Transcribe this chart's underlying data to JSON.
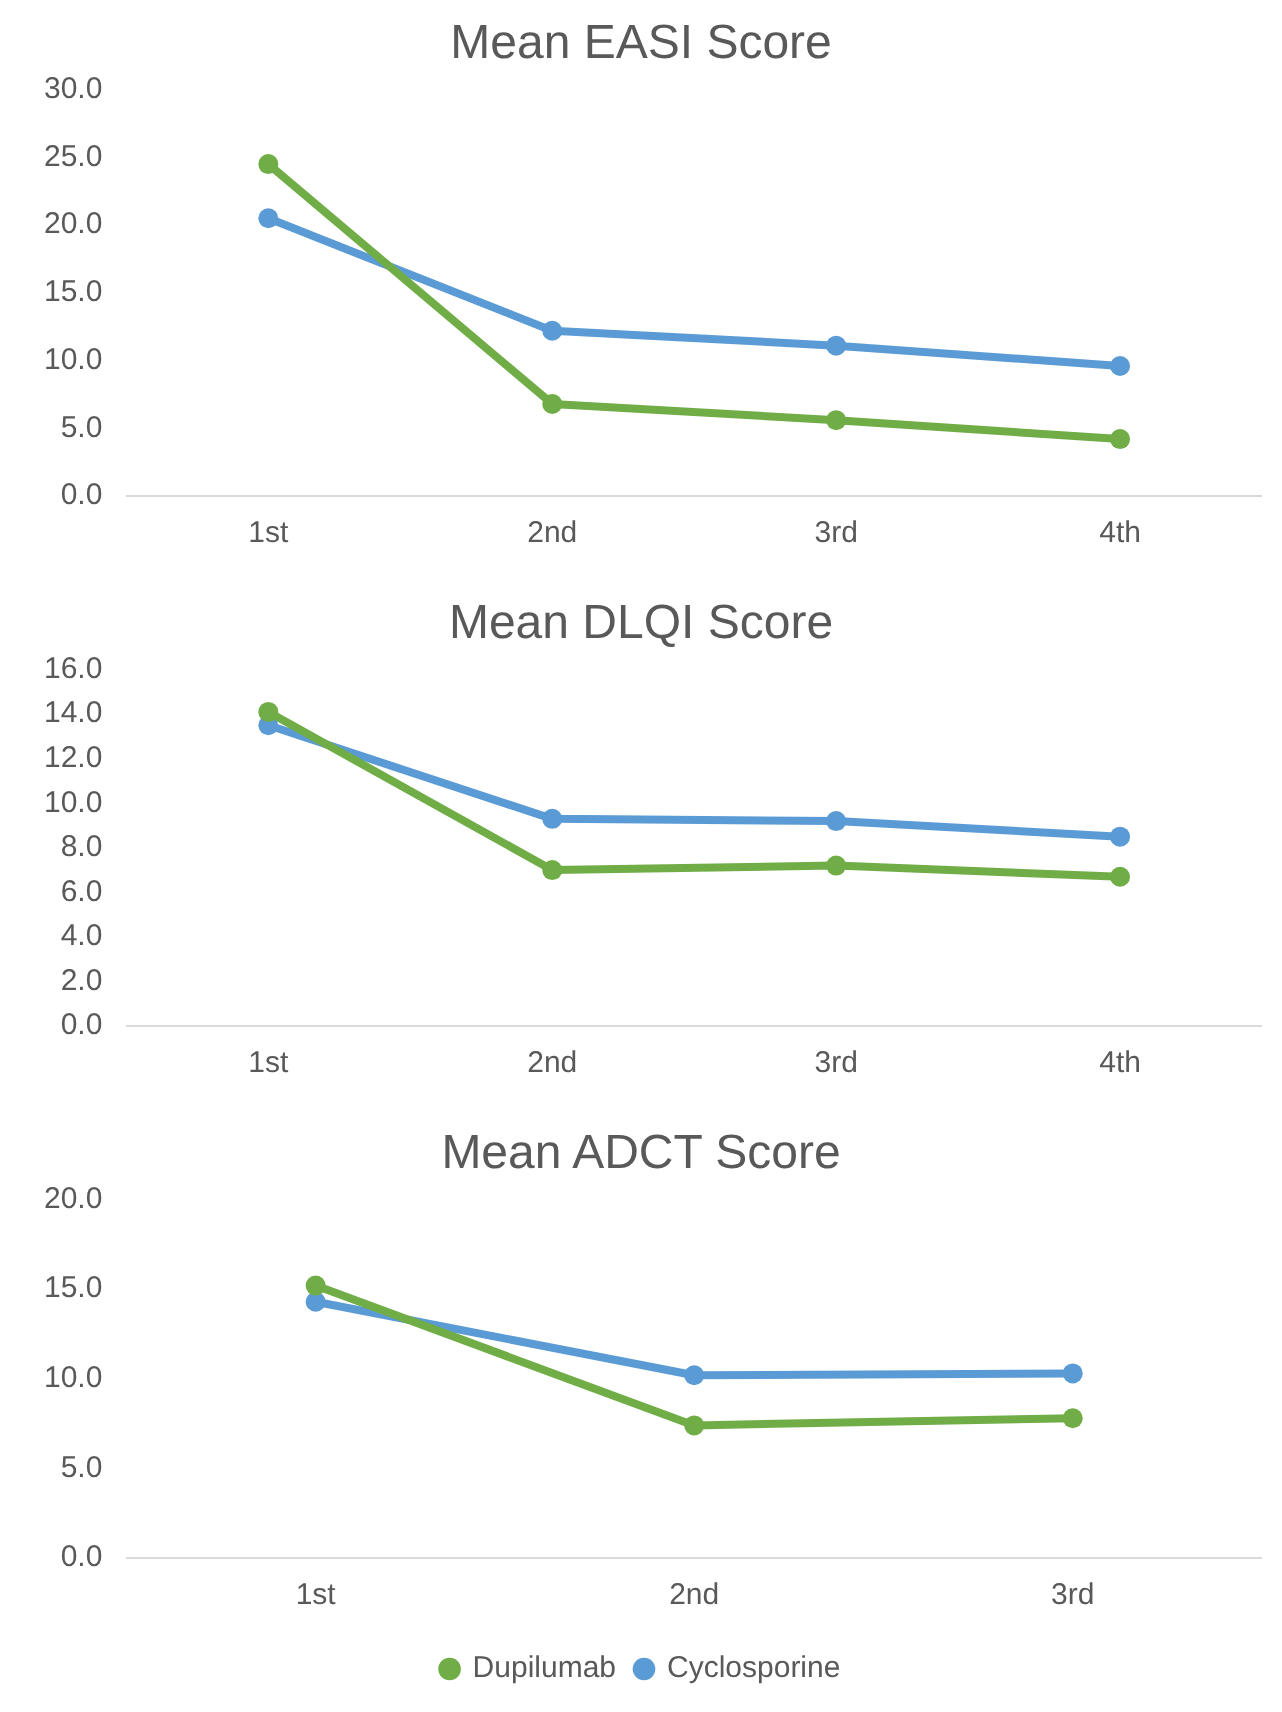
{
  "chart_data": [
    {
      "type": "line",
      "title": "Mean EASI Score",
      "categories": [
        "1st",
        "2nd",
        "3rd",
        "4th"
      ],
      "series": [
        {
          "color": "#70ad47",
          "values": [
            24.5,
            6.8,
            5.6,
            4.2
          ]
        },
        {
          "color": "#5b9bd5",
          "values": [
            20.5,
            12.2,
            11.1,
            9.6
          ]
        }
      ],
      "ylim": [
        0,
        30
      ],
      "yticks": [
        {
          "value": 0,
          "label": "0.0"
        },
        {
          "value": 5,
          "label": "5.0"
        },
        {
          "value": 10,
          "label": "10.0"
        },
        {
          "value": 15,
          "label": "15.0"
        },
        {
          "value": 20,
          "label": "20.0"
        },
        {
          "value": 25,
          "label": "25.0"
        },
        {
          "value": 30,
          "label": "30.0"
        }
      ],
      "grid": false,
      "legend": false,
      "marker": "circle",
      "line_style": "solid"
    },
    {
      "type": "line",
      "title": "Mean DLQI Score",
      "categories": [
        "1st",
        "2nd",
        "3rd",
        "4th"
      ],
      "series": [
        {
          "color": "#70ad47",
          "values": [
            14.1,
            7.0,
            7.2,
            6.7
          ]
        },
        {
          "color": "#5b9bd5",
          "values": [
            13.5,
            9.3,
            9.2,
            8.5
          ]
        }
      ],
      "ylim": [
        0,
        16
      ],
      "yticks": [
        {
          "value": 0,
          "label": "0.0"
        },
        {
          "value": 2,
          "label": "2.0"
        },
        {
          "value": 4,
          "label": "4.0"
        },
        {
          "value": 6,
          "label": "6.0"
        },
        {
          "value": 8,
          "label": "8.0"
        },
        {
          "value": 10,
          "label": "10.0"
        },
        {
          "value": 12,
          "label": "12.0"
        },
        {
          "value": 14,
          "label": "14.0"
        },
        {
          "value": 16,
          "label": "16.0"
        }
      ],
      "grid": false,
      "legend": false,
      "marker": "circle",
      "line_style": "solid"
    },
    {
      "type": "line",
      "title": "Mean ADCT Score",
      "categories": [
        "1st",
        "2nd",
        "3rd"
      ],
      "series": [
        {
          "name": "Dupilumab",
          "color": "#70ad47",
          "values": [
            15.2,
            7.4,
            7.8
          ]
        },
        {
          "name": "Cyclosporine",
          "color": "#5b9bd5",
          "values": [
            14.3,
            10.2,
            10.3
          ]
        }
      ],
      "ylim": [
        0,
        20
      ],
      "yticks": [
        {
          "value": 0,
          "label": "0.0"
        },
        {
          "value": 5,
          "label": "5.0"
        },
        {
          "value": 10,
          "label": "10.0"
        },
        {
          "value": 15,
          "label": "15.0"
        },
        {
          "value": 20,
          "label": "20.0"
        }
      ],
      "grid": false,
      "legend": "bottom",
      "marker": "circle",
      "line_style": "solid"
    }
  ]
}
